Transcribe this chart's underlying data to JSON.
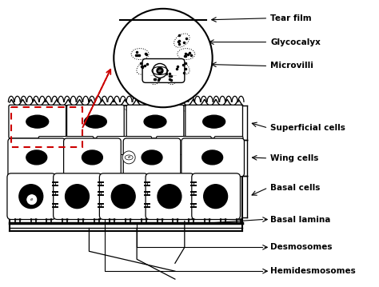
{
  "background_color": "#ffffff",
  "labels": {
    "tear_film": "Tear film",
    "glycocalyx": "Glycocalyx",
    "microvilli": "Microvilli",
    "superficial_cells": "Superficial cells",
    "wing_cells": "Wing cells",
    "basal_cells": "Basal cells",
    "basal_lamina": "Basal lamina",
    "desmosomes": "Desmosomes",
    "hemidesmosomes": "Hemidesmosomes"
  },
  "label_fontsize": 7.5,
  "line_color": "#000000",
  "red_color": "#cc0000"
}
